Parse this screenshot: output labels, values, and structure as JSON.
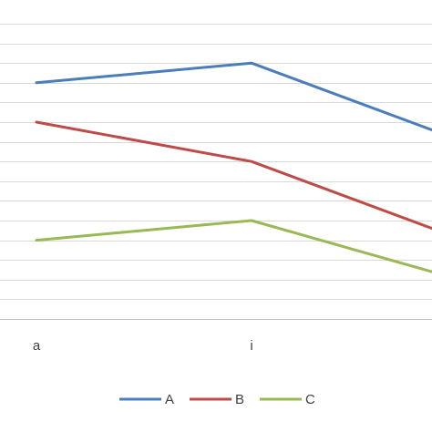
{
  "chart_data": {
    "type": "line",
    "categories": [
      "a",
      "i",
      ""
    ],
    "series": [
      {
        "name": "A",
        "color": "#4a7ebb",
        "values": [
          6,
          6.5,
          4.8
        ]
      },
      {
        "name": "B",
        "color": "#be4b48",
        "values": [
          5,
          4,
          2.3
        ]
      },
      {
        "name": "C",
        "color": "#98b954",
        "values": [
          2,
          2.5,
          1.2
        ]
      }
    ],
    "ylim": [
      0,
      7.5
    ],
    "grid": true,
    "legend": "bottom",
    "title": "",
    "xlabel": "",
    "ylabel": ""
  }
}
